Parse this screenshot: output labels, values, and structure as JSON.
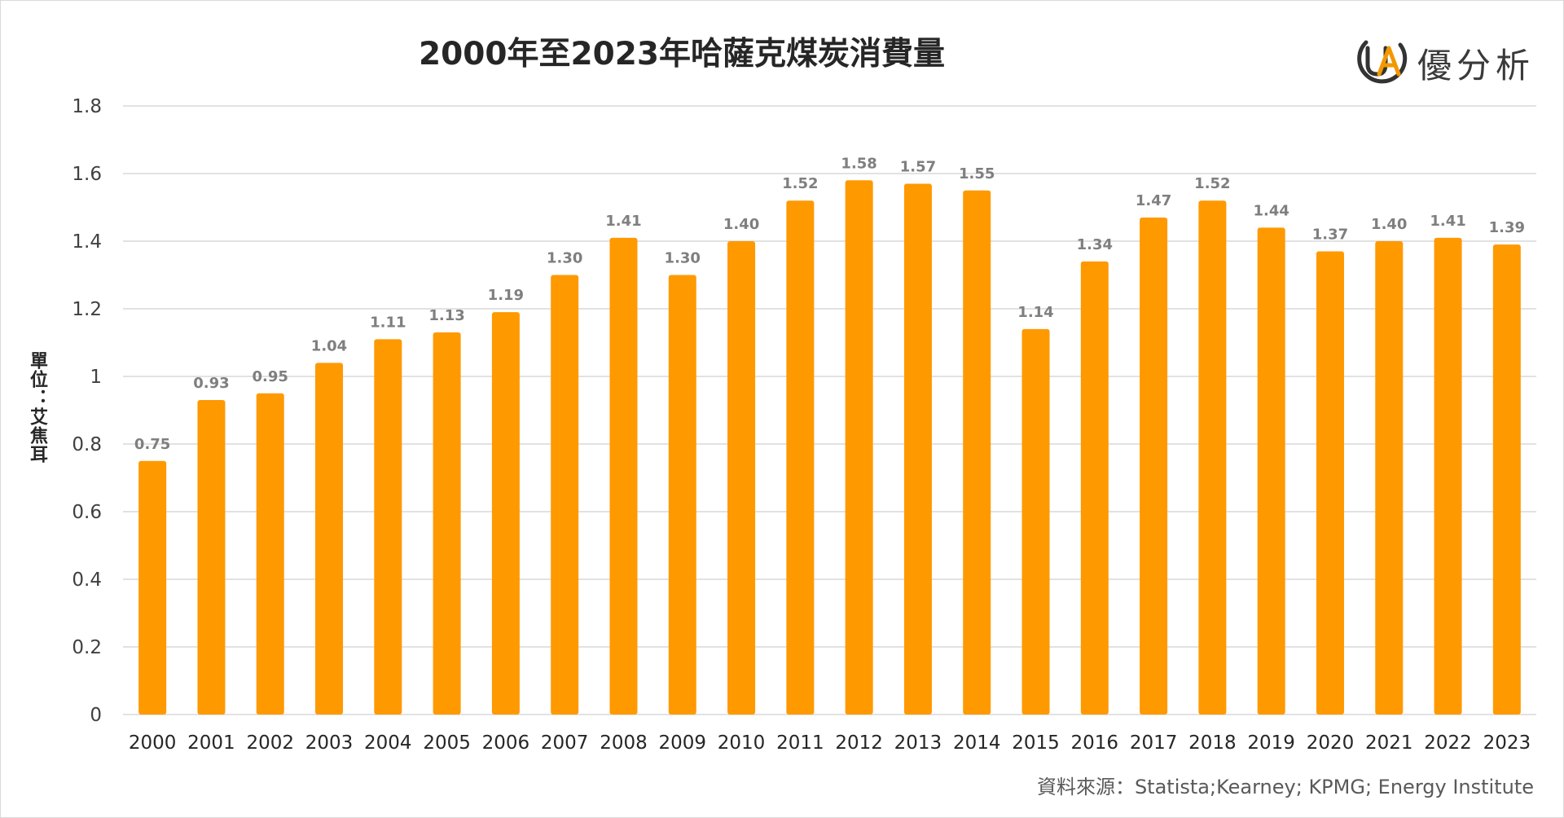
{
  "chart_data": {
    "type": "bar",
    "title": "2000年至2023年哈薩克煤炭消費量",
    "ylabel": "單位：艾焦耳",
    "xlabel": "",
    "categories": [
      "2000",
      "2001",
      "2002",
      "2003",
      "2004",
      "2005",
      "2006",
      "2007",
      "2008",
      "2009",
      "2010",
      "2011",
      "2012",
      "2013",
      "2014",
      "2015",
      "2016",
      "2017",
      "2018",
      "2019",
      "2020",
      "2021",
      "2022",
      "2023"
    ],
    "values": [
      0.75,
      0.93,
      0.95,
      1.04,
      1.11,
      1.13,
      1.19,
      1.3,
      1.41,
      1.3,
      1.4,
      1.52,
      1.58,
      1.57,
      1.55,
      1.14,
      1.34,
      1.47,
      1.52,
      1.44,
      1.37,
      1.4,
      1.41,
      1.39
    ],
    "data_labels": [
      "0.75",
      "0.93",
      "0.95",
      "1.04",
      "1.11",
      "1.13",
      "1.19",
      "1.30",
      "1.41",
      "1.30",
      "1.40",
      "1.52",
      "1.58",
      "1.57",
      "1.55",
      "1.14",
      "1.34",
      "1.47",
      "1.52",
      "1.44",
      "1.37",
      "1.40",
      "1.41",
      "1.39"
    ],
    "ylim": [
      0,
      1.8
    ],
    "yticks": [
      "0",
      "0.2",
      "0.4",
      "0.6",
      "0.8",
      "1",
      "1.2",
      "1.4",
      "1.6",
      "1.8"
    ],
    "grid": true,
    "legend": "none",
    "bar_color": "#FF9900",
    "grid_color": "#d9d9d9",
    "label_color": "#7f7f7f"
  },
  "logo": {
    "text": "優分析",
    "mark_color": "#F39800",
    "ring_color": "#333333"
  },
  "source": "資料來源：Statista;Kearney; KPMG; Energy Institute"
}
